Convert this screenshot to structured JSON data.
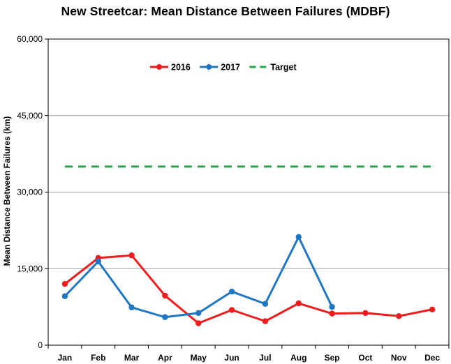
{
  "chart_data": {
    "type": "line",
    "title": "New Streetcar: Mean Distance Between Failures (MDBF)",
    "xlabel": "",
    "ylabel": "Mean Distance Between Failures (km)",
    "categories": [
      "Jan",
      "Feb",
      "Mar",
      "Apr",
      "May",
      "Jun",
      "Jul",
      "Aug",
      "Sep",
      "Oct",
      "Nov",
      "Dec"
    ],
    "ylim": [
      0,
      60000
    ],
    "yticks": [
      0,
      15000,
      30000,
      45000,
      60000
    ],
    "ytick_labels": [
      "0",
      "15,000",
      "30,000",
      "45,000",
      "60,000"
    ],
    "grid": true,
    "legend_position": "top-center",
    "series": [
      {
        "name": "2016",
        "color": "#ee1c1c",
        "style": "solid-marker",
        "values": [
          12000,
          17100,
          17600,
          9700,
          4300,
          6900,
          4700,
          8200,
          6200,
          6300,
          5700,
          7000
        ]
      },
      {
        "name": "2017",
        "color": "#1f77c4",
        "style": "solid-marker",
        "values": [
          9600,
          16400,
          7400,
          5500,
          6300,
          10500,
          8100,
          21200,
          7500,
          null,
          null,
          null
        ]
      },
      {
        "name": "Target",
        "color": "#22a846",
        "style": "dashed",
        "values": [
          35000,
          35000,
          35000,
          35000,
          35000,
          35000,
          35000,
          35000,
          35000,
          35000,
          35000,
          35000
        ]
      }
    ]
  }
}
